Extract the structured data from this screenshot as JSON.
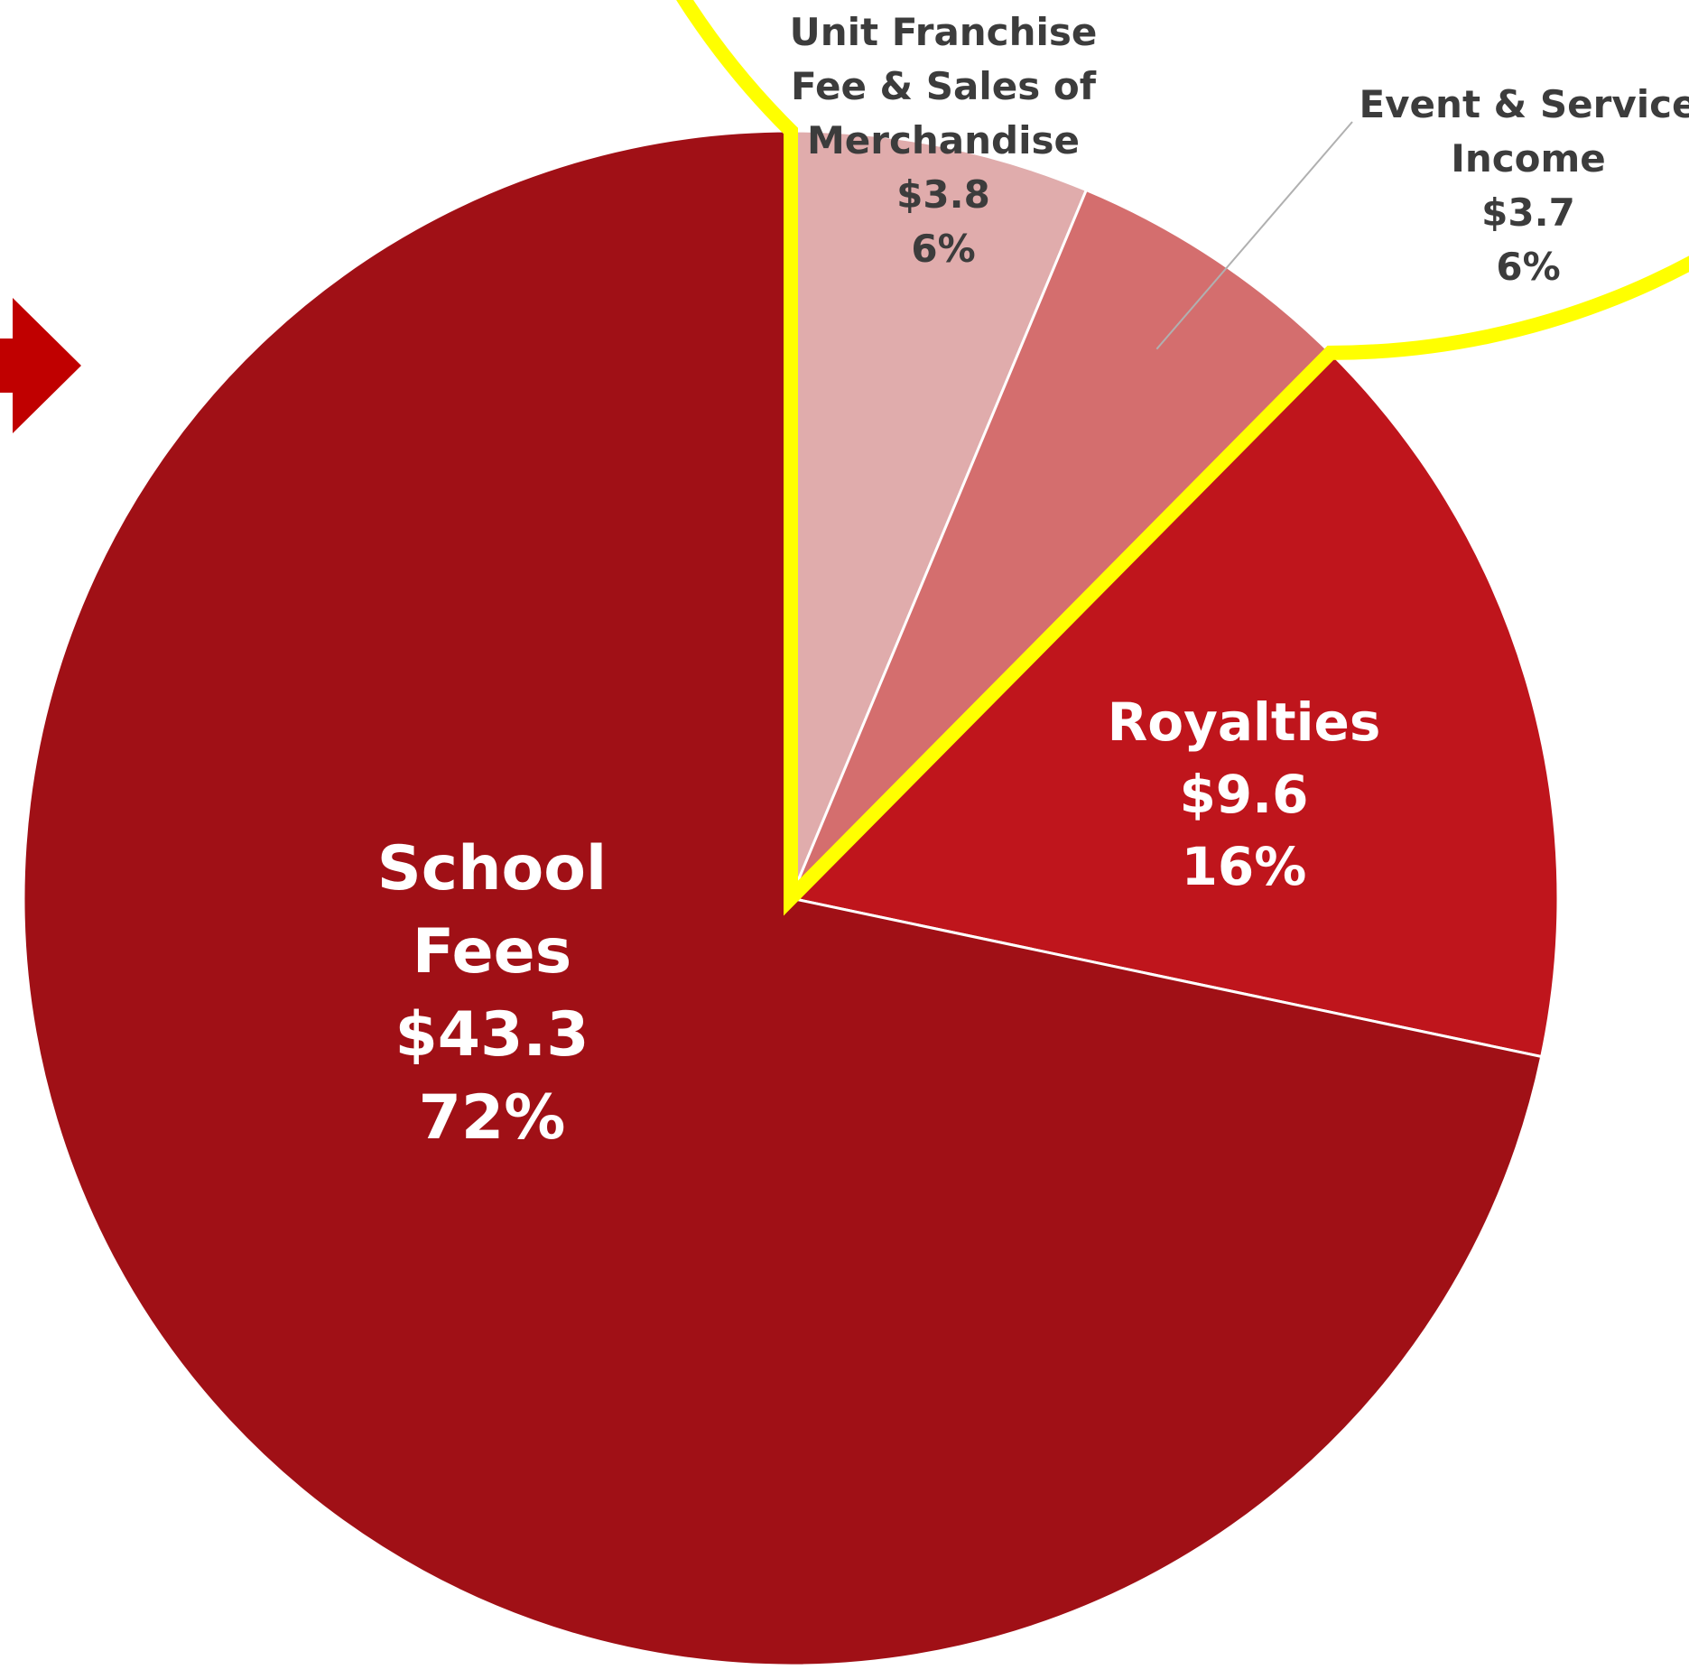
{
  "chart_data": {
    "type": "pie",
    "title": "",
    "start_angle_deg": 0,
    "direction": "clockwise",
    "slices": [
      {
        "name": "Unit Franchise Fee & Sales of Merchandise",
        "label_lines": [
          "Unit Franchise",
          "Fee & Sales of",
          "Merchandise"
        ],
        "value": 3.8,
        "value_label": "$3.8",
        "percent_label": "6%",
        "color": "#e0acac",
        "text_color": "#3c3c3c"
      },
      {
        "name": "Event & Service Income",
        "label_lines": [
          "Event & Service",
          "Income"
        ],
        "value": 3.7,
        "value_label": "$3.7",
        "percent_label": "6%",
        "color": "#d46e6e",
        "text_color": "#3c3c3c",
        "leader_line": true
      },
      {
        "name": "Royalties",
        "label_lines": [
          "Royalties"
        ],
        "value": 9.6,
        "value_label": "$9.6",
        "percent_label": "16%",
        "color": "#bf151c",
        "text_color": "#ffffff"
      },
      {
        "name": "School Fees",
        "label_lines": [
          "School",
          "Fees"
        ],
        "value": 43.3,
        "value_label": "$43.3",
        "percent_label": "72%",
        "color": "#a01016",
        "text_color": "#ffffff"
      }
    ],
    "highlight": {
      "slices": [
        "Royalties",
        "School Fees"
      ],
      "color": "#ffff00"
    },
    "arrow": {
      "color": "#c00000",
      "direction": "right"
    }
  }
}
